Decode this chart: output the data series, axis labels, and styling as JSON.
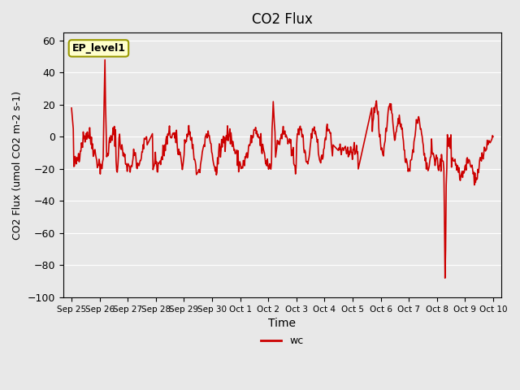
{
  "title": "CO2 Flux",
  "xlabel": "Time",
  "ylabel": "CO2 Flux (umol CO2 m-2 s-1)",
  "ylim": [
    -100,
    65
  ],
  "yticks": [
    -100,
    -80,
    -60,
    -40,
    -20,
    0,
    20,
    40,
    60
  ],
  "line_color": "#cc0000",
  "line_width": 1.2,
  "bg_color": "#e8e8e8",
  "plot_bg_color": "#e8e8e8",
  "legend_label": "wc",
  "annotation_text": "EP_level1",
  "annotation_bg": "#ffffcc",
  "annotation_border": "#999900",
  "x_tick_labels": [
    "Sep 25",
    "Sep 26",
    "Sep 27",
    "Sep 28",
    "Sep 29",
    "Sep 30",
    "Oct 1",
    "Oct 2",
    "Oct 3",
    "Oct 4",
    "Oct 5",
    "Oct 6",
    "Oct 7",
    "Oct 8",
    "Oct 9",
    "Oct 10"
  ],
  "x_tick_positions": [
    0,
    1,
    2,
    3,
    4,
    5,
    6,
    7,
    8,
    9,
    10,
    11,
    12,
    13,
    14,
    15
  ],
  "xlim": [
    -0.3,
    15.3
  ]
}
